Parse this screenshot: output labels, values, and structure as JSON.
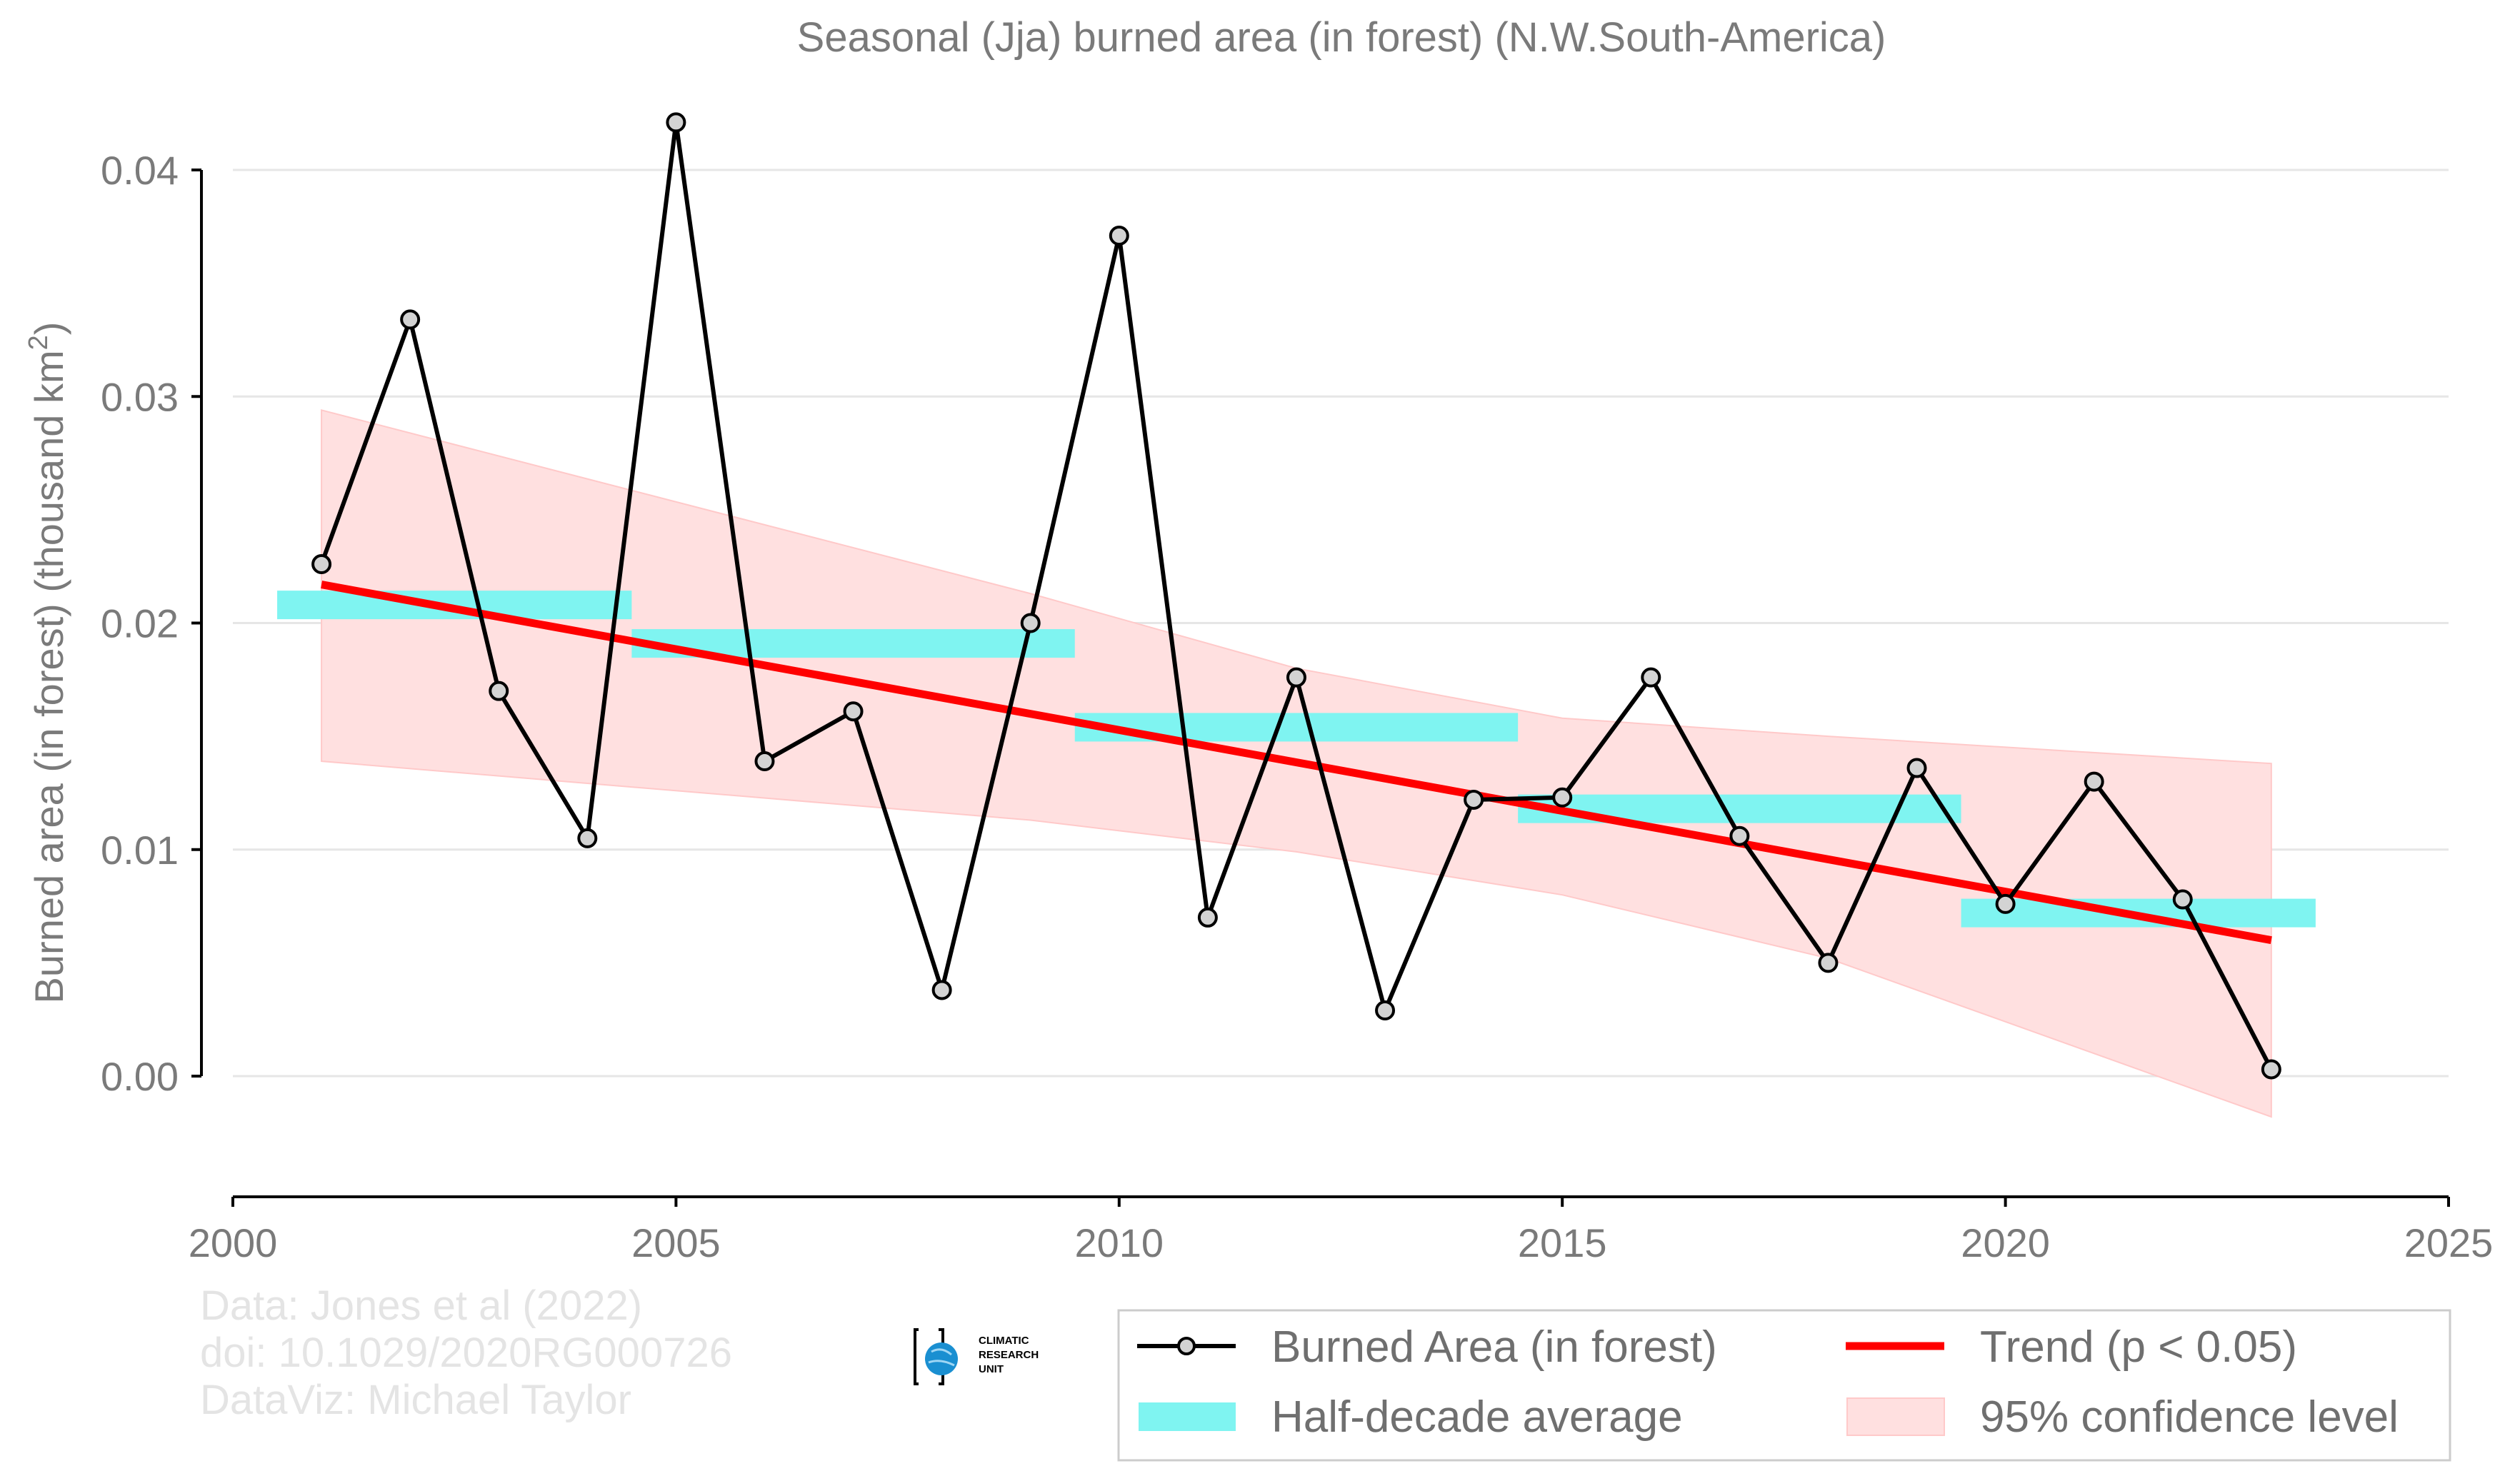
{
  "chart_data": {
    "type": "line",
    "title": "Seasonal (Jja) burned area (in forest) (N.W.South-America)",
    "ylabel": "Burned area (in forest) (thousand km",
    "ylabel_sup": "2",
    "ylabel_close": ")",
    "xlabel": "",
    "xlim": [
      2000,
      2025
    ],
    "ylim": [
      -0.0055,
      0.0445
    ],
    "x_ticks": [
      2000,
      2005,
      2010,
      2015,
      2020,
      2025
    ],
    "x_tick_labels": [
      "2000",
      "2005",
      "2010",
      "2015",
      "2020",
      "2025"
    ],
    "y_ticks": [
      0.0,
      0.01,
      0.02,
      0.03,
      0.04
    ],
    "y_tick_labels": [
      "0.00",
      "0.01",
      "0.02",
      "0.03",
      "0.04"
    ],
    "grid": true,
    "legend_position": "bottom-right",
    "series": [
      {
        "name": "Burned Area (in forest)",
        "kind": "line-markers",
        "color": "#000000",
        "marker_fill": "#d3d3d3",
        "x": [
          2001,
          2002,
          2003,
          2004,
          2005,
          2006,
          2007,
          2008,
          2009,
          2010,
          2011,
          2012,
          2013,
          2014,
          2015,
          2016,
          2017,
          2018,
          2019,
          2020,
          2021,
          2022,
          2023
        ],
        "y": [
          0.0226,
          0.0334,
          0.017,
          0.0105,
          0.0421,
          0.0139,
          0.0161,
          0.0038,
          0.02,
          0.0371,
          0.007,
          0.0176,
          0.0029,
          0.0122,
          0.0123,
          0.0176,
          0.0106,
          0.005,
          0.0136,
          0.0076,
          0.013,
          0.0078,
          0.0003
        ]
      },
      {
        "name": "Half-decade average",
        "kind": "bars",
        "color": "#7ff4f1",
        "segments": [
          {
            "x0": 2000.5,
            "x1": 2004.5,
            "y": 0.0208
          },
          {
            "x0": 2004.5,
            "x1": 2009.5,
            "y": 0.0191
          },
          {
            "x0": 2009.5,
            "x1": 2014.5,
            "y": 0.0154
          },
          {
            "x0": 2014.5,
            "x1": 2019.5,
            "y": 0.0118
          },
          {
            "x0": 2019.5,
            "x1": 2023.5,
            "y": 0.0072
          }
        ]
      },
      {
        "name": "Trend (p < 0.05)",
        "kind": "trend",
        "color": "#ff0000",
        "x": [
          2001,
          2023
        ],
        "y": [
          0.0217,
          0.006
        ]
      },
      {
        "name": "95% confidence level",
        "kind": "band",
        "color": "#ffe0e0",
        "x": [
          2001,
          2009,
          2012,
          2015,
          2018,
          2023
        ],
        "lower": [
          0.0139,
          0.0113,
          0.0099,
          0.008,
          0.0052,
          -0.0018
        ],
        "upper": [
          0.0294,
          0.0213,
          0.018,
          0.0158,
          0.015,
          0.0138
        ]
      }
    ]
  },
  "credits": {
    "line1": "Data: Jones et al (2022)",
    "line2": "doi: 10.1029/2020RG000726",
    "line3": "DataViz: Michael Taylor"
  },
  "logo": {
    "line1": "CLIMATIC",
    "line2": "RESEARCH",
    "line3": "UNIT"
  },
  "colors": {
    "gridline": "#e6e6e6",
    "axis": "#000000",
    "legend_border": "#cccccc"
  }
}
